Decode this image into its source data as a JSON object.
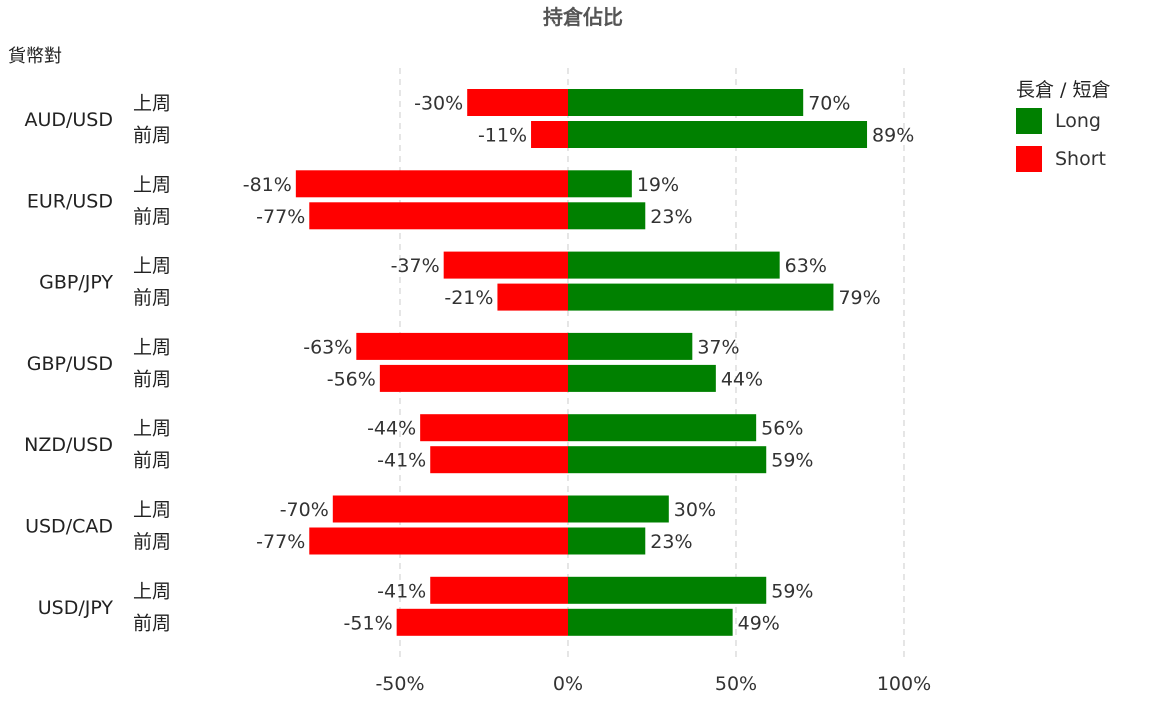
{
  "chart_data": {
    "type": "bar",
    "orientation": "horizontal-diverging",
    "title": "持倉佔比",
    "ylabel": "貨幣對",
    "legend_title": "長倉 / 短倉",
    "legend_position": "top-right",
    "grid": true,
    "xlim": [
      -80,
      100
    ],
    "x_ticks": [
      "-50%",
      "0%",
      "50%",
      "100%"
    ],
    "x_tick_values": [
      -50,
      0,
      50,
      100
    ],
    "pairs": [
      "AUD/USD",
      "EUR/USD",
      "GBP/JPY",
      "GBP/USD",
      "NZD/USD",
      "USD/CAD",
      "USD/JPY"
    ],
    "periods": [
      "上周",
      "前周"
    ],
    "series": [
      {
        "name": "Long",
        "color": "#008000",
        "values": [
          [
            70,
            89
          ],
          [
            19,
            23
          ],
          [
            63,
            79
          ],
          [
            37,
            44
          ],
          [
            56,
            59
          ],
          [
            30,
            23
          ],
          [
            59,
            49
          ]
        ]
      },
      {
        "name": "Short",
        "color": "#ff0000",
        "values": [
          [
            -30,
            -11
          ],
          [
            -81,
            -77
          ],
          [
            -37,
            -21
          ],
          [
            -63,
            -56
          ],
          [
            -44,
            -41
          ],
          [
            -70,
            -77
          ],
          [
            -41,
            -51
          ]
        ]
      }
    ]
  }
}
